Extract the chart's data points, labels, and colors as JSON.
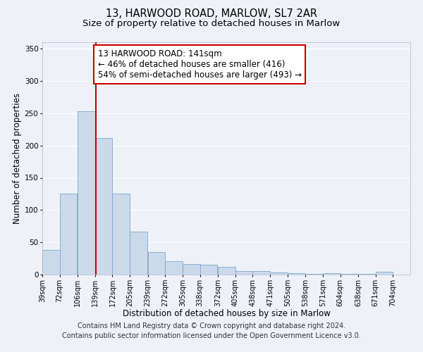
{
  "title": "13, HARWOOD ROAD, MARLOW, SL7 2AR",
  "subtitle": "Size of property relative to detached houses in Marlow",
  "xlabel": "Distribution of detached houses by size in Marlow",
  "ylabel": "Number of detached properties",
  "bar_color": "#ccd9ea",
  "bar_edge_color": "#7aa7cc",
  "background_color": "#eef2f8",
  "grid_color": "#ffffff",
  "vline_x": 141,
  "vline_color": "#cc0000",
  "annotation_line1": "13 HARWOOD ROAD: 141sqm",
  "annotation_line2": "← 46% of detached houses are smaller (416)",
  "annotation_line3": "54% of semi-detached houses are larger (493) →",
  "annotation_box_color": "#ffffff",
  "annotation_box_edge": "#cc0000",
  "bins_left": [
    39,
    72,
    106,
    139,
    172,
    205,
    239,
    272,
    305,
    338,
    372,
    405,
    438,
    471,
    505,
    538,
    571,
    604,
    638,
    671
  ],
  "bin_width": 33,
  "bar_heights": [
    38,
    125,
    253,
    212,
    125,
    67,
    35,
    21,
    16,
    15,
    12,
    5,
    5,
    3,
    2,
    1,
    2,
    1,
    1,
    4
  ],
  "xlim_left": 39,
  "xlim_right": 737,
  "ylim_top": 360,
  "yticks": [
    0,
    50,
    100,
    150,
    200,
    250,
    300,
    350
  ],
  "tick_labels": [
    "39sqm",
    "72sqm",
    "106sqm",
    "139sqm",
    "172sqm",
    "205sqm",
    "239sqm",
    "272sqm",
    "305sqm",
    "338sqm",
    "372sqm",
    "405sqm",
    "438sqm",
    "471sqm",
    "505sqm",
    "538sqm",
    "571sqm",
    "604sqm",
    "638sqm",
    "671sqm",
    "704sqm"
  ],
  "footer_line1": "Contains HM Land Registry data © Crown copyright and database right 2024.",
  "footer_line2": "Contains public sector information licensed under the Open Government Licence v3.0.",
  "title_fontsize": 10.5,
  "subtitle_fontsize": 9.5,
  "xlabel_fontsize": 8.5,
  "ylabel_fontsize": 8.5,
  "tick_fontsize": 7,
  "annotation_fontsize": 8.5,
  "footer_fontsize": 7
}
